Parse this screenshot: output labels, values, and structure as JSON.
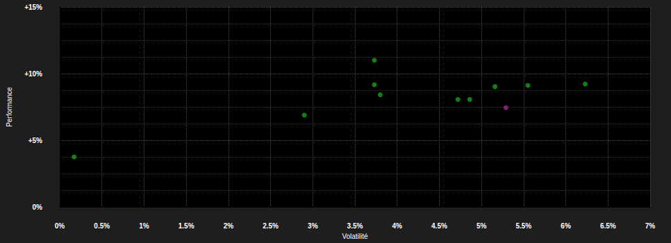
{
  "chart_data": {
    "type": "scatter",
    "xlabel": "Volatilité",
    "ylabel": "Performance",
    "x": [
      0.17,
      2.9,
      3.73,
      3.73,
      3.8,
      4.72,
      4.86,
      5.16,
      5.55,
      6.23,
      5.29
    ],
    "values": [
      3.75,
      6.89,
      11.0,
      9.17,
      8.41,
      8.06,
      8.06,
      9.02,
      9.12,
      9.22,
      7.45
    ],
    "colors": [
      "#1d9e1d",
      "#1d9e1d",
      "#1d9e1d",
      "#1d9e1d",
      "#1d9e1d",
      "#1d9e1d",
      "#1d9e1d",
      "#1d9e1d",
      "#1d9e1d",
      "#1d9e1d",
      "#a3258f"
    ],
    "xlim": [
      0,
      7
    ],
    "ylim": [
      0,
      15
    ],
    "xticks": [
      {
        "value": 0,
        "label": "0%"
      },
      {
        "value": 0.5,
        "label": "0.5%"
      },
      {
        "value": 1,
        "label": "1%"
      },
      {
        "value": 1.5,
        "label": "1.5%"
      },
      {
        "value": 2,
        "label": "2%"
      },
      {
        "value": 2.5,
        "label": "2.5%"
      },
      {
        "value": 3,
        "label": "3%"
      },
      {
        "value": 3.5,
        "label": "3.5%"
      },
      {
        "value": 4,
        "label": "4%"
      },
      {
        "value": 4.5,
        "label": "4.5%"
      },
      {
        "value": 5,
        "label": "5%"
      },
      {
        "value": 5.5,
        "label": "5.5%"
      },
      {
        "value": 6,
        "label": "6%"
      },
      {
        "value": 6.5,
        "label": "6.5%"
      },
      {
        "value": 7,
        "label": "7%"
      }
    ],
    "yticks": [
      {
        "value": 0,
        "label": "0%"
      },
      {
        "value": 5,
        "label": "+5%"
      },
      {
        "value": 10,
        "label": "+10%"
      },
      {
        "value": 15,
        "label": "+15%"
      }
    ],
    "grid": true
  }
}
